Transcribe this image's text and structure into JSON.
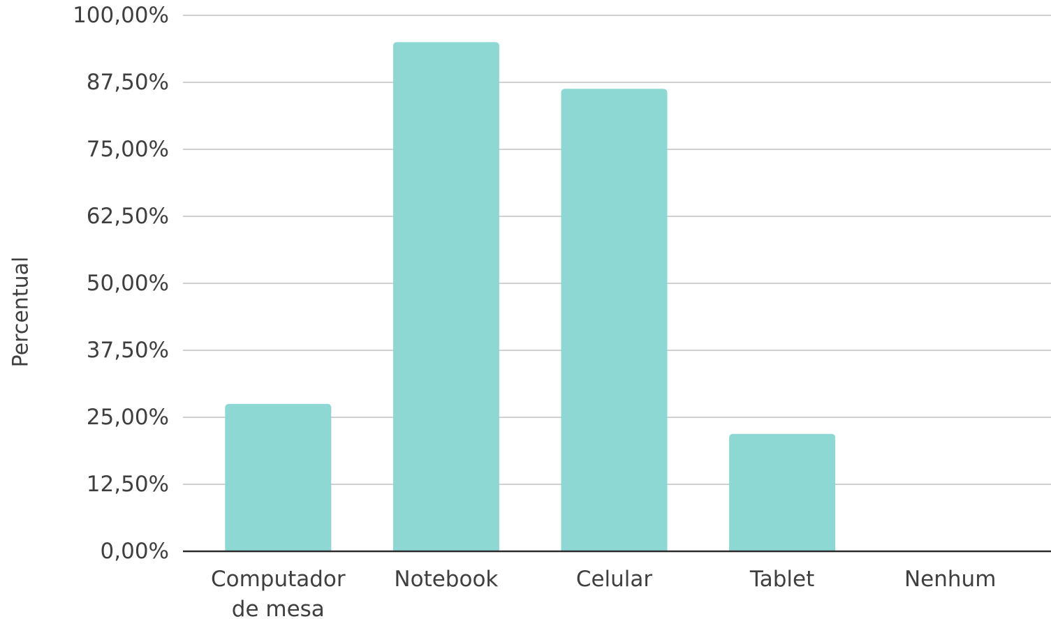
{
  "chart_data": {
    "type": "bar",
    "title": "",
    "xlabel": "",
    "ylabel": "Percentual",
    "categories": [
      [
        "Computador",
        "de mesa"
      ],
      [
        "Notebook"
      ],
      [
        "Celular"
      ],
      [
        "Tablet"
      ],
      [
        "Nenhum"
      ]
    ],
    "values": [
      27.5,
      95.0,
      86.3,
      21.9,
      0
    ],
    "ylim": [
      0,
      100
    ],
    "y_ticks": [
      0,
      12.5,
      25,
      37.5,
      50,
      62.5,
      75,
      87.5,
      100
    ],
    "y_tick_labels": [
      "0,00%",
      "12,50%",
      "25,00%",
      "37,50%",
      "50,00%",
      "62,50%",
      "75,00%",
      "87,50%",
      "100,00%"
    ],
    "grid": true,
    "legend": "none",
    "colors": {
      "bar": "#8dd8d2",
      "grid": "#cfcfcf",
      "baseline": "#2b2b2b",
      "text": "#3f3f3f"
    }
  }
}
